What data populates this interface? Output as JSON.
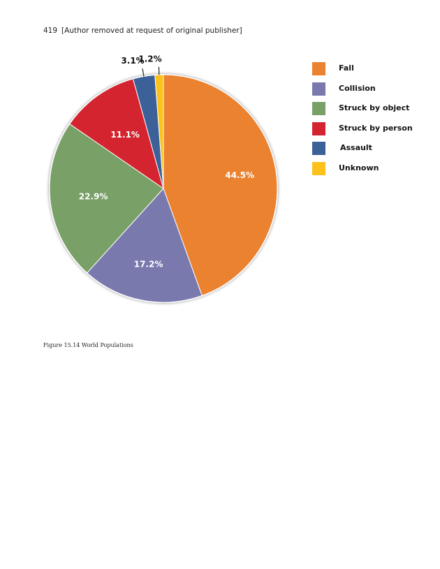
{
  "header": {
    "page_number": "419",
    "text": "[Author removed at request of original publisher]"
  },
  "caption": "Figure 15.14 World Populations",
  "chart_data": {
    "type": "pie",
    "title": "",
    "categories": [
      "Fall",
      "Collision",
      "Struck by object",
      "Struck by person",
      "Assault",
      "Unknown"
    ],
    "values": [
      44.5,
      17.2,
      22.9,
      11.1,
      3.1,
      1.2
    ],
    "labels": [
      "44.5%",
      "17.2%",
      "22.9%",
      "11.1%",
      "3.1%",
      "1.2%"
    ],
    "colors": [
      "#ea8230",
      "#7a79ae",
      "#78a067",
      "#d3242f",
      "#3c6098",
      "#fcc21b"
    ],
    "legend_position": "right",
    "start": "top",
    "direction": "clockwise"
  }
}
